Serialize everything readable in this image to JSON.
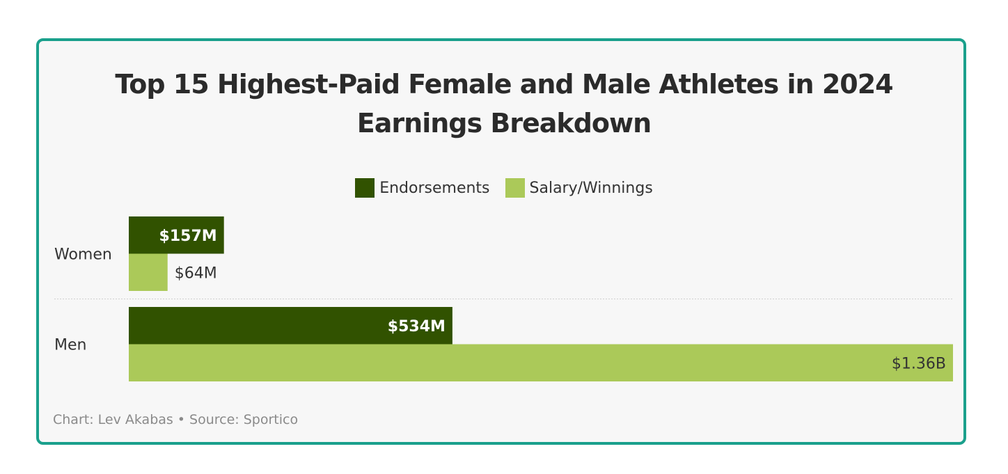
{
  "chart_data": {
    "type": "bar",
    "orientation": "horizontal",
    "title": "Top 15 Highest-Paid Female and Male Athletes in 2024",
    "subtitle": "Earnings Breakdown",
    "categories": [
      "Women",
      "Men"
    ],
    "series": [
      {
        "name": "Endorsements",
        "values": [
          157,
          534
        ],
        "labels": [
          "$157M",
          "$534M"
        ],
        "color": "#315200"
      },
      {
        "name": "Salary/Winnings",
        "values": [
          64,
          1360
        ],
        "labels": [
          "$64M",
          "$1.36B"
        ],
        "color": "#abc959"
      }
    ],
    "unit": "millions USD",
    "xlim": [
      0,
      1360
    ],
    "grid": false,
    "legend_position": "top-center"
  },
  "footer": {
    "chart_credit": "Chart: Lev Akabas",
    "separator": "•",
    "source": "Source: Sportico"
  },
  "colors": {
    "border": "#1aa08c",
    "background": "#f7f7f7",
    "label_light": "#ffffff",
    "label_dark": "#333333"
  }
}
